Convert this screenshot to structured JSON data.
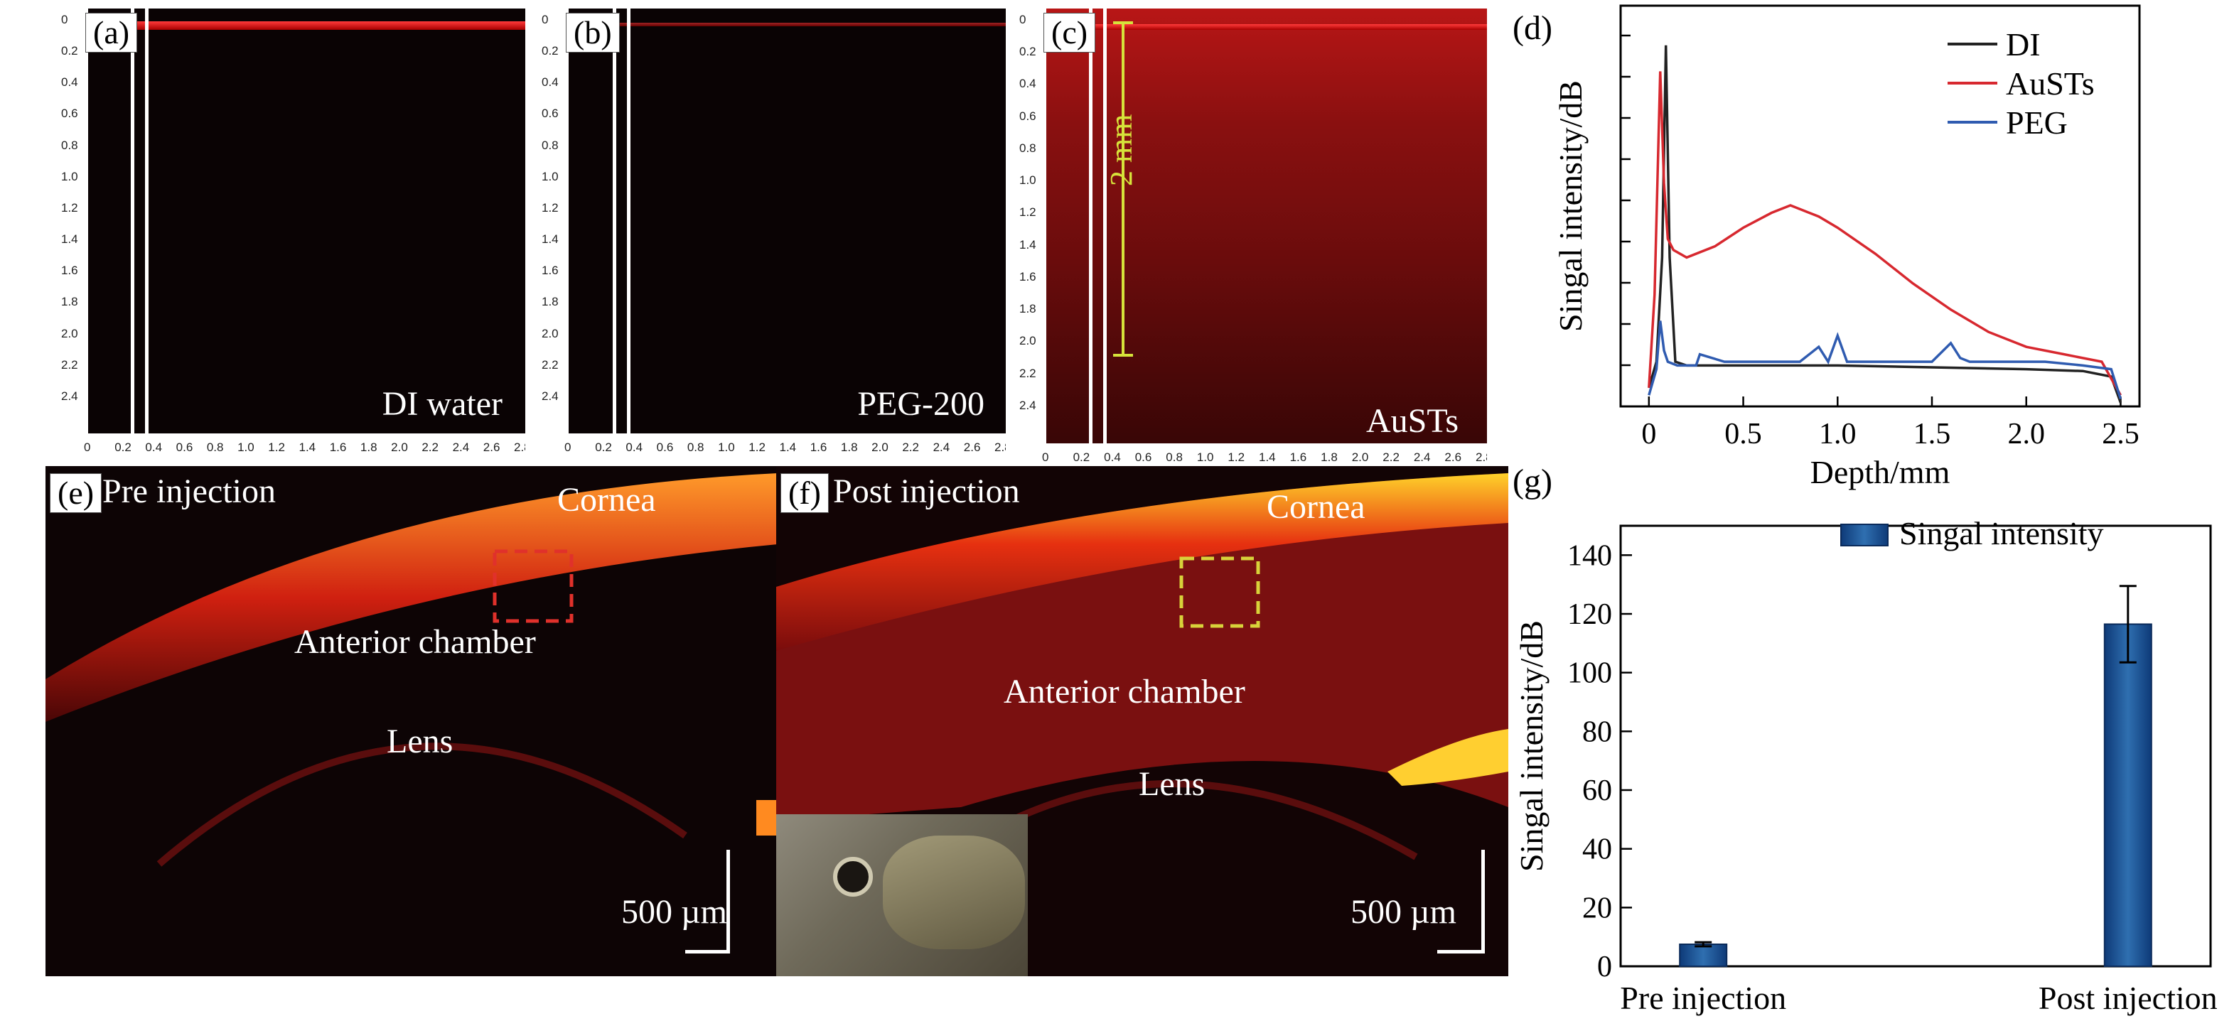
{
  "panels": {
    "a": {
      "letter": "(a)",
      "label": "DI water"
    },
    "b": {
      "letter": "(b)",
      "label": "PEG-200"
    },
    "c": {
      "letter": "(c)",
      "label": "AuSTs",
      "scale": "2 mm"
    },
    "d": {
      "letter": "(d)"
    },
    "e": {
      "letter": "(e)",
      "title": "Pre injection",
      "cornea": "Cornea",
      "chamber": "Anterior chamber",
      "lens": "Lens",
      "scale": "500 µm"
    },
    "f": {
      "letter": "(f)",
      "title": "Post injection",
      "cornea": "Cornea",
      "chamber": "Anterior chamber",
      "lens": "Lens",
      "scale": "500 µm"
    },
    "g": {
      "letter": "(g)"
    }
  },
  "ruler": {
    "x_ticks": [
      "0",
      "0.2",
      "0.4",
      "0.6",
      "0.8",
      "1.0",
      "1.2",
      "1.4",
      "1.6",
      "1.8",
      "2.0",
      "2.2",
      "2.4",
      "2.6",
      "2.8"
    ],
    "y_ticks": [
      "0",
      "0.2",
      "0.4",
      "0.6",
      "0.8",
      "1.0",
      "1.2",
      "1.4",
      "1.6",
      "1.8",
      "2.0",
      "2.2",
      "2.4"
    ]
  },
  "chart_data": [
    {
      "type": "line",
      "xlabel": "Depth/mm",
      "ylabel": "Singal intensity/dB",
      "xlim": [
        -0.15,
        2.6
      ],
      "x_ticks": [
        "0",
        "0.5",
        "1.0",
        "1.5",
        "2.0",
        "2.5"
      ],
      "legend_position": "top-right",
      "series": [
        {
          "name": "DI",
          "color": "#222222",
          "x": [
            0,
            0.04,
            0.07,
            0.09,
            0.11,
            0.14,
            0.2,
            0.5,
            1.0,
            1.5,
            2.0,
            2.3,
            2.45,
            2.5
          ],
          "y": [
            5,
            12,
            40,
            97,
            40,
            12,
            11,
            11,
            11,
            10.5,
            10,
            9.5,
            8,
            1
          ]
        },
        {
          "name": "AuSTs",
          "color": "#d7282f",
          "x": [
            0,
            0.03,
            0.06,
            0.08,
            0.1,
            0.13,
            0.2,
            0.35,
            0.5,
            0.65,
            0.75,
            0.9,
            1.0,
            1.2,
            1.4,
            1.6,
            1.8,
            2.0,
            2.2,
            2.4,
            2.5
          ],
          "y": [
            5,
            30,
            90,
            60,
            45,
            42,
            40,
            43,
            48,
            52,
            54,
            51,
            48,
            41,
            33,
            26,
            20,
            16,
            14,
            12,
            3
          ]
        },
        {
          "name": "PEG",
          "color": "#2f5bb0",
          "x": [
            0,
            0.04,
            0.06,
            0.08,
            0.1,
            0.15,
            0.25,
            0.27,
            0.4,
            0.6,
            0.8,
            0.9,
            0.95,
            1.0,
            1.05,
            1.1,
            1.3,
            1.5,
            1.6,
            1.65,
            1.7,
            1.9,
            2.1,
            2.3,
            2.45,
            2.5
          ],
          "y": [
            3,
            10,
            23,
            15,
            12,
            11,
            11,
            14,
            12,
            12,
            12,
            16,
            12,
            19,
            12,
            12,
            12,
            12,
            17,
            13,
            12,
            12,
            12,
            11,
            10,
            2
          ]
        }
      ]
    },
    {
      "type": "bar",
      "categories": [
        "Pre injection",
        "Post injection"
      ],
      "values": [
        7.5,
        116.5
      ],
      "errors": [
        0.7,
        13
      ],
      "ylabel": "Singal intensity/dB",
      "ylim": [
        0,
        150
      ],
      "y_ticks": [
        "0",
        "20",
        "40",
        "60",
        "80",
        "100",
        "120",
        "140"
      ],
      "legend": "Singal intensity",
      "legend_position": "top-right",
      "color": "#2f6fb0"
    }
  ]
}
